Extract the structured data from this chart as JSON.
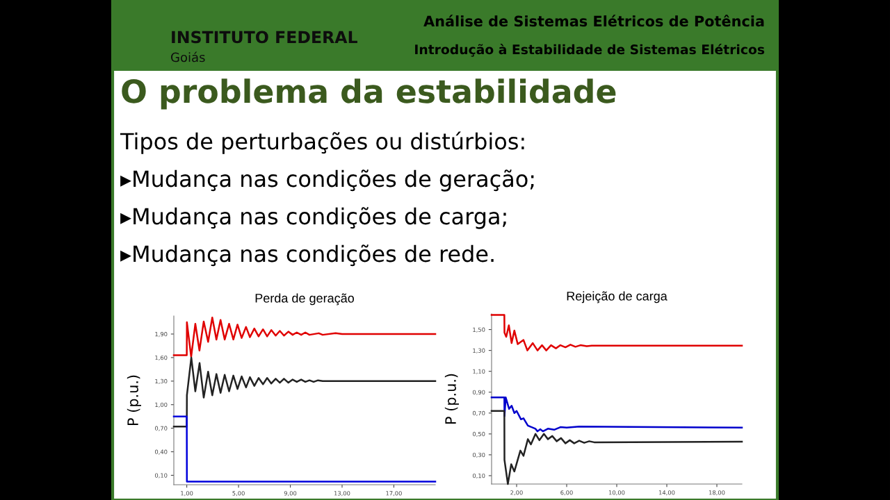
{
  "chart_data": [
    {
      "type": "line",
      "title": "Perda de geração",
      "ylabel": "P (p.u.)",
      "annotations": [
        "INSTITUTO FEDERAL",
        "Goiás",
        "Análise de Sistemas Elétricos de Potência",
        "Introdução à Estabilidade de Sistemas Elétricos",
        "O problema da estabilidade",
        "Tipos de perturbações ou distúrbios:",
        "▸Mudança nas condições de geração;",
        "▸Mudança nas condições de carga;",
        "▸Mudança nas condições de rede."
      ],
      "xlim": [
        0,
        20.2
      ],
      "ylim": [
        -0.02,
        2.13
      ],
      "xticks": [
        {
          "value": 1,
          "label": "1,00"
        },
        {
          "value": 5,
          "label": "5,00"
        },
        {
          "value": 9,
          "label": "9,00"
        },
        {
          "value": 13,
          "label": "13,00"
        },
        {
          "value": 17,
          "label": "17,00"
        }
      ],
      "yticks": [
        {
          "value": 0.1,
          "label": "0,10"
        },
        {
          "value": 0.4,
          "label": "0,40"
        },
        {
          "value": 0.7,
          "label": "0,70"
        },
        {
          "value": 1.0,
          "label": "1,00"
        },
        {
          "value": 1.3,
          "label": "1,30"
        },
        {
          "value": 1.6,
          "label": "1,60"
        },
        {
          "value": 1.9,
          "label": "1,90"
        }
      ],
      "grid": false,
      "legend": false,
      "series": [
        {
          "color": "#e00000",
          "x": [
            0,
            1.0,
            1.01,
            1.34,
            1.66,
            1.98,
            2.31,
            2.65,
            2.97,
            3.29,
            3.61,
            3.93,
            4.27,
            4.6,
            4.92,
            5.24,
            5.58,
            5.88,
            6.22,
            6.55,
            6.89,
            7.21,
            7.53,
            7.87,
            8.19,
            8.51,
            8.85,
            9.18,
            9.5,
            9.84,
            10.16,
            10.48,
            11.2,
            11.5,
            12.5,
            13.0,
            20.2
          ],
          "values": [
            1.63,
            1.63,
            2.05,
            1.61,
            2.03,
            1.69,
            2.06,
            1.8,
            2.11,
            1.83,
            2.08,
            1.83,
            2.03,
            1.83,
            2.02,
            1.85,
            1.99,
            1.86,
            1.97,
            1.87,
            1.96,
            1.87,
            1.95,
            1.88,
            1.94,
            1.88,
            1.93,
            1.89,
            1.92,
            1.89,
            1.92,
            1.89,
            1.91,
            1.89,
            1.91,
            1.9,
            1.9
          ]
        },
        {
          "color": "#222222",
          "x": [
            0,
            1.0,
            1.01,
            1.35,
            1.66,
            1.99,
            2.31,
            2.65,
            2.97,
            3.29,
            3.61,
            3.93,
            4.27,
            4.6,
            4.92,
            5.24,
            5.58,
            5.88,
            6.22,
            6.55,
            6.89,
            7.21,
            7.53,
            7.87,
            8.19,
            8.51,
            8.85,
            9.18,
            9.5,
            9.84,
            10.16,
            10.48,
            10.8,
            11.14,
            11.5,
            20.2
          ],
          "values": [
            0.72,
            0.72,
            1.12,
            1.6,
            1.17,
            1.53,
            1.09,
            1.42,
            1.12,
            1.39,
            1.15,
            1.38,
            1.17,
            1.37,
            1.2,
            1.36,
            1.22,
            1.35,
            1.24,
            1.34,
            1.26,
            1.34,
            1.27,
            1.33,
            1.28,
            1.33,
            1.28,
            1.32,
            1.29,
            1.32,
            1.29,
            1.31,
            1.29,
            1.31,
            1.3,
            1.3
          ]
        },
        {
          "color": "#0000dd",
          "x": [
            0,
            1.0,
            1.01,
            20.2
          ],
          "values": [
            0.85,
            0.85,
            0.02,
            0.02
          ]
        }
      ]
    },
    {
      "type": "line",
      "title": "Rejeição de carga",
      "ylabel": "P (p.u.)",
      "xlim": [
        0,
        20
      ],
      "ylim": [
        0.02,
        1.65
      ],
      "xticks": [
        {
          "value": 2,
          "label": "2,00"
        },
        {
          "value": 6,
          "label": "6,00"
        },
        {
          "value": 10,
          "label": "10,00"
        },
        {
          "value": 14,
          "label": "14,00"
        },
        {
          "value": 18,
          "label": "18,00"
        }
      ],
      "yticks": [
        {
          "value": 0.1,
          "label": "0,10"
        },
        {
          "value": 0.3,
          "label": "0,30"
        },
        {
          "value": 0.5,
          "label": "0,50"
        },
        {
          "value": 0.7,
          "label": "0,70"
        },
        {
          "value": 0.9,
          "label": "0,90"
        },
        {
          "value": 1.1,
          "label": "1,10"
        },
        {
          "value": 1.3,
          "label": "1,30"
        },
        {
          "value": 1.5,
          "label": "1,50"
        }
      ],
      "grid": false,
      "legend": false,
      "series": [
        {
          "color": "#e00000",
          "x": [
            0,
            1.02,
            1.03,
            1.17,
            1.38,
            1.6,
            1.82,
            2.09,
            2.55,
            2.86,
            3.29,
            3.67,
            4.03,
            4.37,
            4.75,
            5.14,
            5.5,
            5.9,
            6.3,
            6.7,
            7.1,
            7.6,
            8.0,
            20
          ],
          "values": [
            1.64,
            1.64,
            1.47,
            1.43,
            1.54,
            1.37,
            1.49,
            1.36,
            1.4,
            1.3,
            1.37,
            1.3,
            1.35,
            1.3,
            1.35,
            1.32,
            1.35,
            1.33,
            1.355,
            1.335,
            1.35,
            1.34,
            1.345,
            1.345
          ]
        },
        {
          "color": "#0000cc",
          "x": [
            0,
            1.02,
            1.03,
            1.13,
            1.4,
            1.6,
            1.82,
            2.0,
            2.35,
            2.55,
            2.9,
            3.5,
            3.67,
            3.9,
            4.1,
            4.5,
            5.0,
            5.5,
            6.0,
            7.0,
            20
          ],
          "values": [
            0.85,
            0.85,
            0.67,
            0.85,
            0.74,
            0.77,
            0.7,
            0.72,
            0.64,
            0.65,
            0.58,
            0.55,
            0.525,
            0.545,
            0.525,
            0.55,
            0.54,
            0.565,
            0.56,
            0.57,
            0.56
          ]
        },
        {
          "color": "#222222",
          "x": [
            0,
            1.02,
            1.03,
            1.3,
            1.57,
            1.82,
            2.3,
            2.55,
            2.9,
            3.14,
            3.51,
            3.82,
            4.18,
            4.5,
            4.85,
            5.2,
            5.55,
            5.9,
            6.25,
            6.6,
            7.0,
            7.4,
            7.8,
            8.2,
            20
          ],
          "values": [
            0.72,
            0.72,
            0.25,
            0.02,
            0.21,
            0.14,
            0.34,
            0.29,
            0.45,
            0.4,
            0.5,
            0.44,
            0.5,
            0.45,
            0.48,
            0.43,
            0.46,
            0.41,
            0.44,
            0.41,
            0.435,
            0.415,
            0.43,
            0.42,
            0.425
          ]
        }
      ]
    }
  ]
}
